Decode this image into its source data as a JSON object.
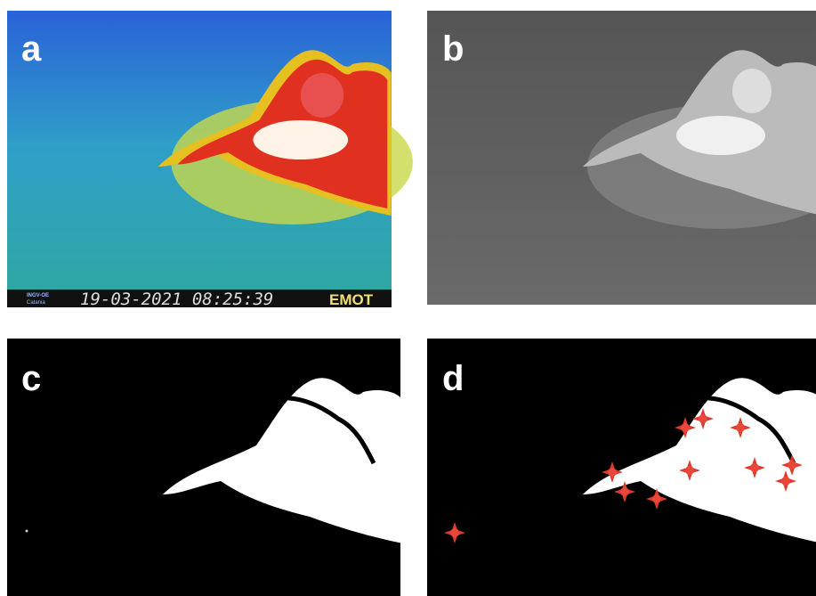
{
  "panels": [
    {
      "label": "a"
    },
    {
      "label": "b"
    },
    {
      "label": "c"
    },
    {
      "label": "d"
    }
  ],
  "camera": {
    "station_line1": "INGV-OE",
    "station_line2": "Catania",
    "timestamp": "19-03-2021 08:25:39",
    "code": "EMOT"
  }
}
